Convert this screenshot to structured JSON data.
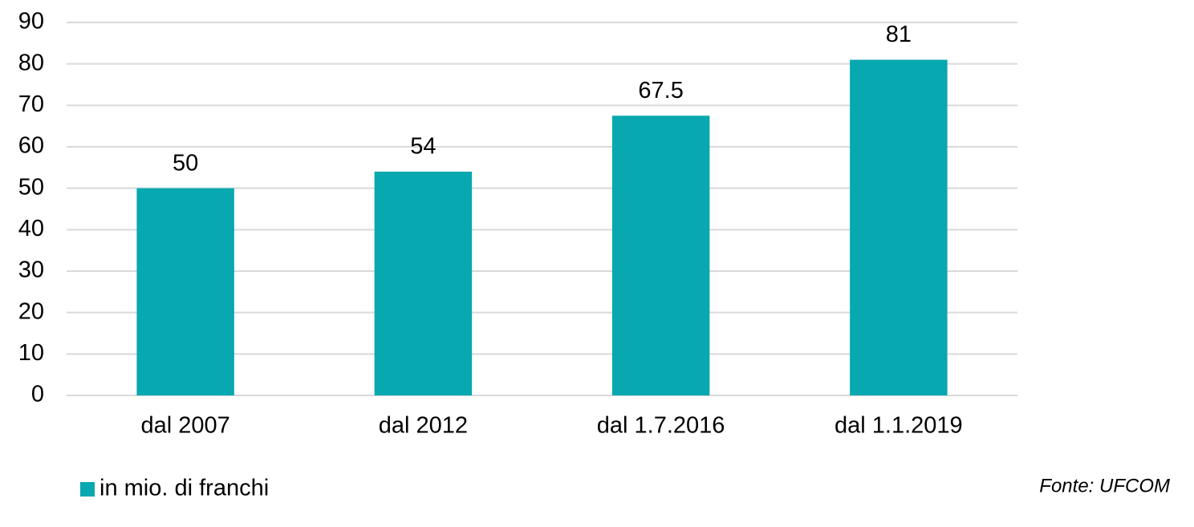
{
  "chart_data": {
    "type": "bar",
    "categories": [
      "dal 2007",
      "dal 2012",
      "dal 1.7.2016",
      "dal 1.1.2019"
    ],
    "series": [
      {
        "name": "in mio. di franchi",
        "color": "#07a8b0",
        "values": [
          50,
          54,
          67.5,
          81
        ]
      }
    ],
    "ylim": [
      0,
      90
    ],
    "yticks": [
      0,
      10,
      20,
      30,
      40,
      50,
      60,
      70,
      80,
      90
    ],
    "grid": true,
    "legend": "bottom-left",
    "source": "Fonte: UFCOM"
  }
}
